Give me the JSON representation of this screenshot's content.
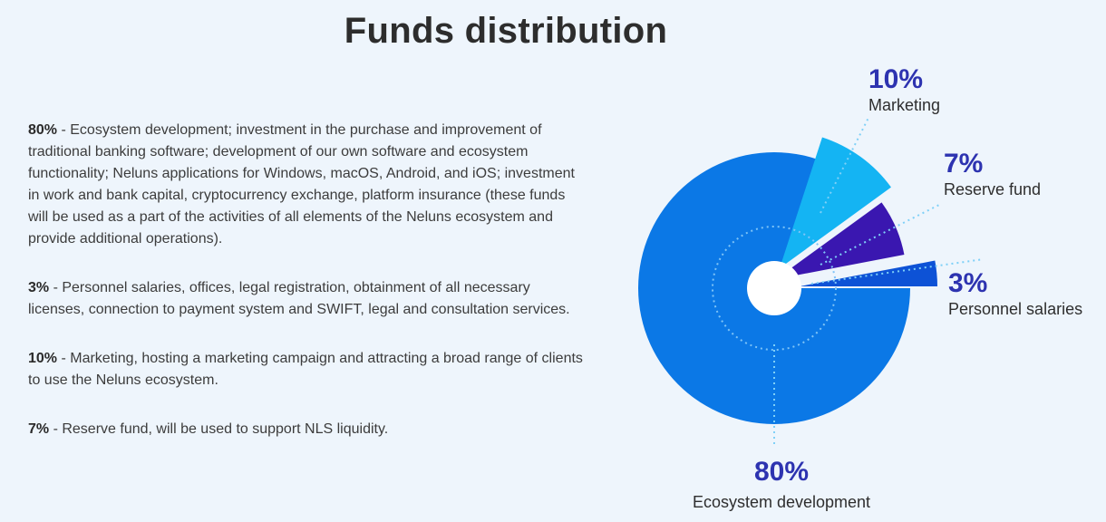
{
  "page": {
    "title": "Funds distribution"
  },
  "descriptions": [
    {
      "pct": "80%",
      "text": " - Ecosystem development; investment in the purchase and improvement of traditional banking software; development of our own software and ecosystem functionality; Neluns applications for Windows, macOS, Android, and iOS; investment in work and bank capital, cryptocurrency exchange, platform insurance (these funds will be used as a part of the activities of all elements of the Neluns ecosystem and provide additional operations)."
    },
    {
      "pct": "3%",
      "text": " - Personnel salaries, offices, legal registration, obtainment of all necessary licenses, connection to payment system and SWIFT, legal and consultation services."
    },
    {
      "pct": "10%",
      "text": " - Marketing, hosting a marketing campaign and attracting a broad range of clients to use the Neluns ecosystem."
    },
    {
      "pct": "7%",
      "text": " - Reserve fund, will be used to support NLS liquidity."
    }
  ],
  "chart_data": {
    "type": "pie",
    "categories": [
      "Ecosystem development",
      "Marketing",
      "Reserve fund",
      "Personnel salaries"
    ],
    "values": [
      80,
      10,
      7,
      3
    ],
    "value_labels": [
      "80%",
      "10%",
      "7%",
      "3%"
    ],
    "colors": [
      "#0b78e6",
      "#14b4f3",
      "#3a17b0",
      "#0d52d6"
    ],
    "label_color": "#2d33b0",
    "donut_hole": true,
    "exploded_slices": [
      "Marketing",
      "Reserve fund",
      "Personnel salaries"
    ]
  }
}
